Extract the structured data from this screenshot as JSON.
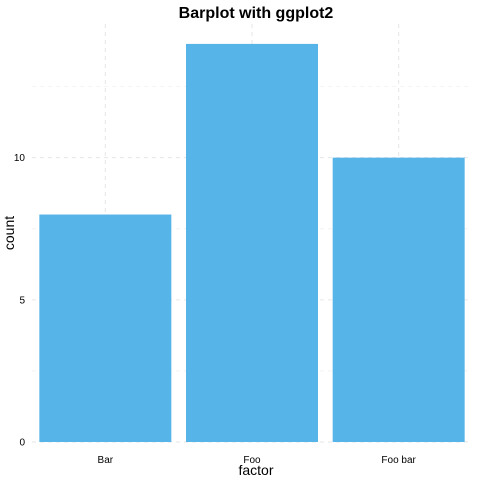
{
  "chart_data": {
    "type": "bar",
    "title": "Barplot with ggplot2",
    "xlabel": "factor",
    "ylabel": "count",
    "categories": [
      "Bar",
      "Foo",
      "Foo bar"
    ],
    "values": [
      8,
      14,
      10
    ],
    "ylim": [
      0,
      14.7
    ],
    "yticks": [
      0,
      5,
      10
    ],
    "ytick_labels": [
      "0",
      "5",
      "10"
    ],
    "grid": true,
    "bar_color": "#56B4E9"
  }
}
